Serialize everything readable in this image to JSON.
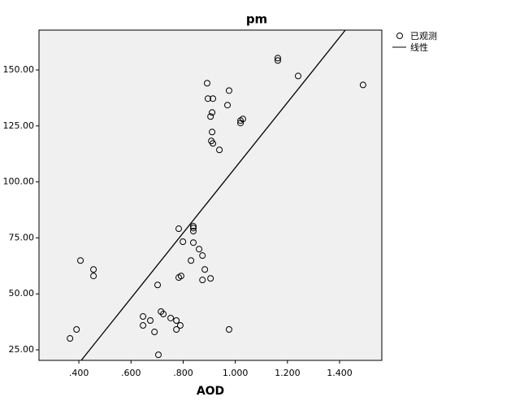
{
  "chart_data": {
    "type": "scatter",
    "title": "pm",
    "x_label": "AOD",
    "series": [
      {
        "name": "已观测",
        "color": "#000000",
        "x": [
          0.366,
          0.391,
          0.406,
          0.456,
          0.456,
          0.702,
          0.646,
          0.646,
          0.674,
          0.69,
          0.715,
          0.724,
          0.705,
          0.752,
          0.774,
          0.774,
          0.789,
          0.783,
          0.799,
          0.783,
          0.792,
          0.83,
          0.839,
          0.839,
          0.839,
          0.839,
          0.861,
          0.874,
          0.883,
          0.874,
          0.905,
          0.976,
          0.892,
          0.895,
          0.914,
          0.976,
          0.97,
          0.911,
          0.905,
          0.911,
          0.908,
          0.914,
          0.939,
          1.02,
          1.02,
          1.029,
          1.163,
          1.163,
          1.241,
          1.49
        ],
        "values": [
          30.1,
          34.1,
          64.9,
          60.9,
          58.0,
          54.0,
          39.9,
          35.9,
          38.1,
          33.0,
          42.1,
          41.0,
          22.8,
          39.2,
          38.1,
          34.1,
          35.9,
          79.1,
          73.3,
          57.3,
          58.0,
          64.9,
          80.2,
          79.4,
          78.0,
          72.9,
          70.0,
          67.1,
          60.9,
          56.2,
          56.9,
          34.1,
          144.1,
          137.2,
          137.2,
          140.8,
          134.3,
          131.0,
          129.2,
          122.3,
          118.3,
          117.2,
          114.3,
          127.4,
          126.3,
          128.1,
          155.3,
          154.2,
          147.3,
          143.3
        ]
      }
    ],
    "fit": {
      "name": "线性",
      "color": "#000000",
      "x": [
        0.409,
        1.422
      ],
      "values": [
        20.3,
        167.8
      ]
    },
    "xlim": [
      0.247,
      1.562
    ],
    "ylim": [
      20.3,
      167.8
    ],
    "xticks": [
      {
        "value": 0.4,
        "label": ".400"
      },
      {
        "value": 0.6,
        "label": ".600"
      },
      {
        "value": 0.8,
        "label": ".800"
      },
      {
        "value": 1.0,
        "label": "1.000"
      },
      {
        "value": 1.2,
        "label": "1.200"
      },
      {
        "value": 1.4,
        "label": "1.400"
      }
    ],
    "yticks": [
      {
        "value": 25,
        "label": "25.00"
      },
      {
        "value": 50,
        "label": "50.00"
      },
      {
        "value": 75,
        "label": "75.00"
      },
      {
        "value": 100,
        "label": "100.00"
      },
      {
        "value": 125,
        "label": "125.00"
      },
      {
        "value": 150,
        "label": "150.00"
      }
    ],
    "plot_background": "#f0f0f0"
  }
}
